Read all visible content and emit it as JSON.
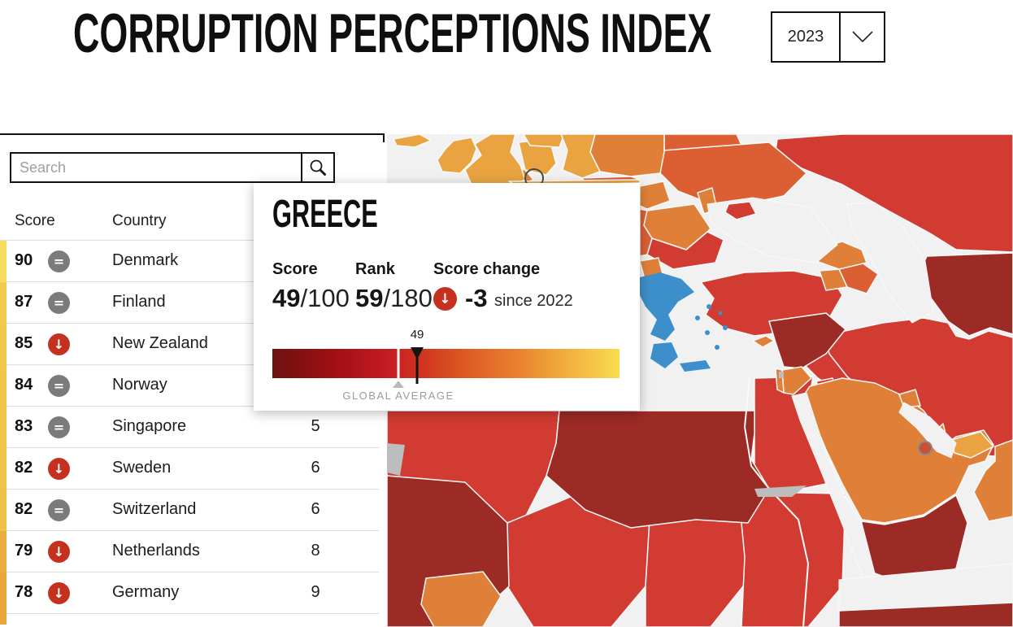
{
  "header": {
    "title": "CORRUPTION PERCEPTIONS INDEX",
    "year": "2023"
  },
  "search": {
    "placeholder": "Search"
  },
  "table": {
    "columns": {
      "score": "Score",
      "country": "Country"
    },
    "rows": [
      {
        "score": "90",
        "trend": "same",
        "country": "Denmark",
        "rank": "",
        "strip": "#F7DB5C"
      },
      {
        "score": "87",
        "trend": "same",
        "country": "Finland",
        "rank": "",
        "strip": "#F2CB4E"
      },
      {
        "score": "85",
        "trend": "down",
        "country": "New Zealand",
        "rank": "",
        "strip": "#F1C84C"
      },
      {
        "score": "84",
        "trend": "same",
        "country": "Norway",
        "rank": "",
        "strip": "#F1C64B"
      },
      {
        "score": "83",
        "trend": "same",
        "country": "Singapore",
        "rank": "5",
        "strip": "#F0C54A"
      },
      {
        "score": "82",
        "trend": "down",
        "country": "Sweden",
        "rank": "6",
        "strip": "#F0C24A"
      },
      {
        "score": "82",
        "trend": "same",
        "country": "Switzerland",
        "rank": "6",
        "strip": "#EFC049"
      },
      {
        "score": "79",
        "trend": "down",
        "country": "Netherlands",
        "rank": "8",
        "strip": "#ECAB3F"
      },
      {
        "score": "78",
        "trend": "down",
        "country": "Germany",
        "rank": "9",
        "strip": "#EAA63C"
      }
    ],
    "partial_row_strip": "#EAA63C"
  },
  "popup": {
    "title": "GREECE",
    "score": {
      "label": "Score",
      "value": "49",
      "denominator": "/100"
    },
    "rank": {
      "label": "Rank",
      "value": "59",
      "denominator": "/180"
    },
    "change": {
      "label": "Score change",
      "value": "-3",
      "note": "since 2022",
      "direction": "down"
    },
    "scale": {
      "marker_label": "49",
      "marker_pct": 41.7,
      "global_average_label": "GLOBAL AVERAGE",
      "global_average_pct": 36.3,
      "gradient": [
        "#6B120E 0%",
        "#A00F14 18%",
        "#C51B22 33%",
        "#D23A20 45%",
        "#DD5B24 56%",
        "#E87F2E 70%",
        "#F2AC3D 84%",
        "#F9DC4F 100%"
      ]
    }
  },
  "map": {
    "hovered_country": "Greece",
    "colors": {
      "ocean": "#F2F1F1",
      "yellow": "#E9A441",
      "orange": "#E08038",
      "orange_red": "#DC5F34",
      "red": "#D23B32",
      "dark_red": "#9C2A25",
      "highlight_blue": "#3D8FCB",
      "no_data_gray": "#BDBDBD",
      "border": "#FAFAFA"
    }
  },
  "colors": {
    "accent_red": "#C6311F",
    "trend_gray": "#7B7B7B"
  }
}
